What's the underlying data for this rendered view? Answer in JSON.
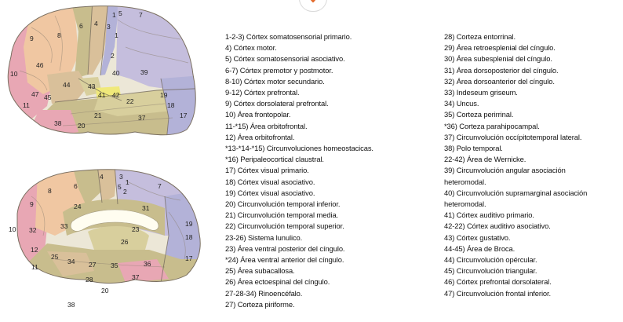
{
  "figure": {
    "lateral_labels": [
      "1",
      "2",
      "3",
      "4",
      "5",
      "6",
      "7",
      "8",
      "9",
      "10",
      "11",
      "17",
      "18",
      "19",
      "20",
      "21",
      "22",
      "37",
      "38",
      "39",
      "40",
      "41",
      "42",
      "43",
      "44",
      "45",
      "46",
      "47"
    ],
    "medial_labels": [
      "1",
      "2",
      "3",
      "4",
      "5",
      "6",
      "7",
      "8",
      "9",
      "10",
      "11",
      "12",
      "17",
      "18",
      "19",
      "20",
      "23",
      "24",
      "25",
      "26",
      "27",
      "28",
      "31",
      "32",
      "33",
      "34",
      "35",
      "36",
      "37",
      "38"
    ],
    "colors": {
      "pink": "#e8a7b4",
      "peach": "#f0c7a2",
      "olive": "#c8bd8d",
      "tan": "#d9c09a",
      "lavender": "#c5bedd",
      "periwinkle": "#b3b2d8",
      "light": "#ece7d7",
      "yellow": "#f0e97a",
      "khaki": "#d8cf9d"
    }
  },
  "legend": {
    "col1": [
      "1-2-3) Córtex somatosensorial primario.",
      "4) Córtex motor.",
      "5) Córtex somatosensorial asociativo.",
      "6-7) Córtex premotor y postmotor.",
      "8-10) Córtex motor secundario.",
      "9-12) Córtex prefrontal.",
      "9) Córtex dorsolateral prefrontal.",
      "10) Área frontopolar.",
      "11-*15) Área orbitofrontal.",
      "12) Área orbitofrontal.",
      "*13-*14-*15) Circunvoluciones homeostacicas.",
      "*16) Peripaleocortical claustral.",
      "17) Córtex visual primario.",
      "18) Córtex visual asociativo.",
      "19) Córtex visual asociativo.",
      "20) Circunvolución temporal inferior.",
      "21) Circunvolución temporal media.",
      "22) Circunvolución temporal superior.",
      "23-26) Sistema lunulico.",
      "23) Área ventral posterior del cíngulo.",
      "*24) Área ventral anterior del cíngulo.",
      "25) Área subacallosa.",
      "26) Área ectoespinal del cíngulo.",
      "27-28-34) Rinoencéfalo.",
      "27) Corteza piriforme."
    ],
    "col2": [
      "28) Corteza entorrinal.",
      "29) Área retroesplenial del cíngulo.",
      "30) Área subesplenial del cíngulo.",
      "31) Área dorsoposterior del cíngulo.",
      "32) Área dorsoanterior del cíngulo.",
      "33) Indeseum griseum.",
      "34) Uncus.",
      "35) Corteza perirrinal.",
      "*36) Corteza parahipocampal.",
      "37) Circunvolución occípitotemporal lateral.",
      "38) Polo temporal.",
      "22-42) Área de Wernicke.",
      "39) Circunvolución angular asociación",
      "heteromodal.",
      "40) Circunvolución supramarginal asociación",
      "heteromodal.",
      "41) Córtex auditivo primario.",
      "42-22) Córtex auditivo asociativo.",
      "43) Córtex gustativo.",
      "44-45) Área de Broca.",
      "44) Circunvolución opércular.",
      "45) Circunvolución triangular.",
      "46) Córtex prefrontal dorsolateral.",
      "47) Circunvolución frontal inferior."
    ]
  }
}
